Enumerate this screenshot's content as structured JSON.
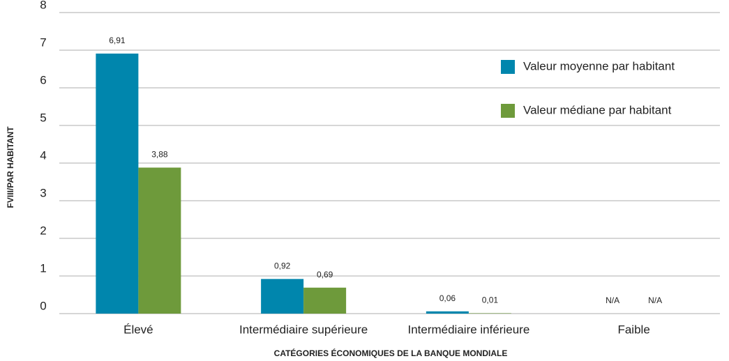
{
  "chart_data": {
    "type": "bar",
    "y_label": "FVIII/PAR HABITANT",
    "x_label": "CATÉGORIES ÉCONOMIQUES DE LA BANQUE MONDIALE",
    "categories": [
      "Élevé",
      "Intermédiaire supérieure",
      "Intermédiaire inférieure",
      "Faible"
    ],
    "series": [
      {
        "name": "Valeur moyenne par habitant",
        "color": "#0086ad",
        "values": [
          6.91,
          0.92,
          0.06,
          null
        ],
        "value_labels": [
          "6,91",
          "0,92",
          "0,06",
          "N/A"
        ]
      },
      {
        "name": "Valeur médiane par habitant",
        "color": "#6e9a3b",
        "values": [
          3.88,
          0.69,
          0.01,
          null
        ],
        "value_labels": [
          "3,88",
          "0,69",
          "0,01",
          "N/A"
        ]
      }
    ],
    "ylim": [
      0,
      8
    ],
    "yticks": [
      0,
      1,
      2,
      3,
      4,
      5,
      6,
      7,
      8
    ],
    "grid": true,
    "legend": "upper right"
  }
}
